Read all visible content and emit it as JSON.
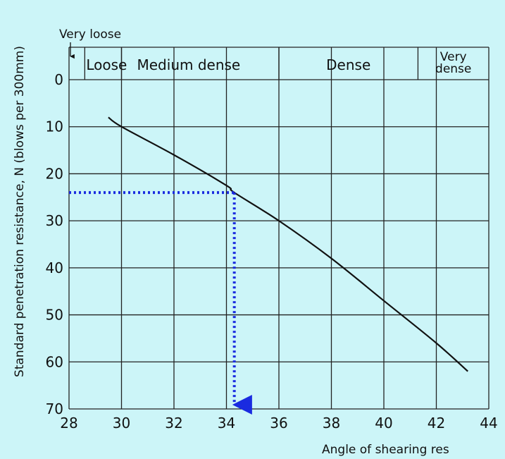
{
  "chart_data": {
    "type": "line",
    "xlabel": "Angle of shearing res",
    "ylabel": "Standard penetration resistance, N (blows per 300mm)",
    "xlim": [
      28,
      44
    ],
    "ylim": [
      0,
      70
    ],
    "y_inverted": true,
    "grid": true,
    "x_ticks": [
      "28",
      "30",
      "32",
      "34",
      "36",
      "38",
      "40",
      "42",
      "44"
    ],
    "y_ticks": [
      "0",
      "10",
      "20",
      "30",
      "40",
      "50",
      "60",
      "70"
    ],
    "series": [
      {
        "x": [
          29.5,
          30,
          32,
          34,
          34.3,
          36,
          38,
          40,
          42,
          43.2
        ],
        "y": [
          8,
          10,
          16,
          22.5,
          24,
          30,
          38,
          47,
          56,
          62
        ]
      }
    ],
    "reading_example": {
      "x": 34.3,
      "y": 24
    },
    "density_bands": [
      {
        "label": "Very loose",
        "from": 28,
        "to": 28.6
      },
      {
        "label": "Loose",
        "from": 28.6,
        "to": 30
      },
      {
        "label": "Medium dense",
        "from": 30,
        "to": 36
      },
      {
        "label": "Dense",
        "from": 36,
        "to": 41.3
      },
      {
        "label": "Very dense",
        "from": 41.3,
        "to": 44
      }
    ],
    "colors": {
      "background": "#ccf5f8",
      "grid": "#222222",
      "curve": "#111111",
      "guide": "#1a2be0"
    }
  }
}
